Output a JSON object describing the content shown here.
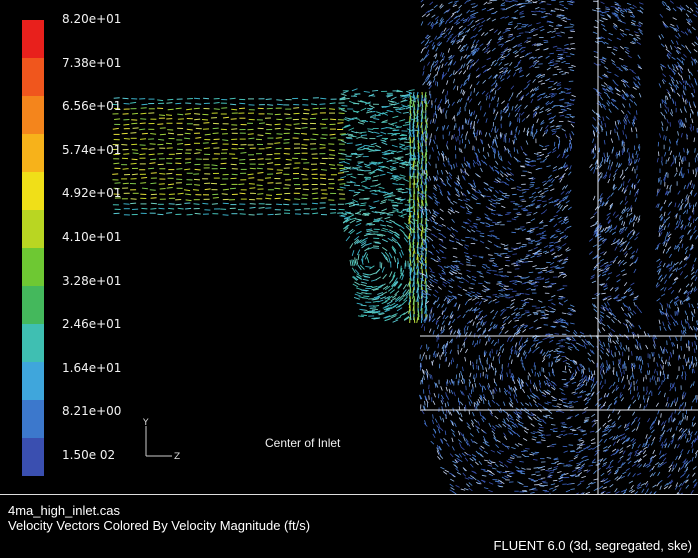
{
  "colorbar": {
    "labels": [
      "8.20e+01",
      "7.38e+01",
      "6.56e+01",
      "5.74e+01",
      "4.92e+01",
      "4.10e+01",
      "3.28e+01",
      "2.46e+01",
      "1.64e+01",
      "8.21e+00",
      "1.50e 02"
    ],
    "colors": [
      "#e8201c",
      "#f0561d",
      "#f4851c",
      "#f7b21a",
      "#f0df18",
      "#b9d622",
      "#6ec833",
      "#44b85c",
      "#3fbfb2",
      "#3fa6dc",
      "#3c78cc",
      "#3a4fb0"
    ]
  },
  "annotation": {
    "center_label": "Center of Inlet"
  },
  "axes": {
    "y": "Y",
    "z": "Z"
  },
  "footer": {
    "case_name": "4ma_high_inlet.cas",
    "plot_title": "Velocity Vectors Colored By Velocity Magnitude (ft/s)",
    "solver_info": "FLUENT 6.0 (3d, segregated, ske)"
  },
  "field_colors": {
    "inlet": [
      "#c9d82a",
      "#e6e23a",
      "#9fd23c",
      "#d6e05a",
      "#7fc84a"
    ],
    "transition": [
      "#46c2b8",
      "#58cbd4",
      "#3ab0c8",
      "#6fd0c0"
    ],
    "domain": [
      "#3b62c4",
      "#4a7fd8",
      "#3a50b0",
      "#5a95e0",
      "#8fb7ea",
      "#c9d6f2"
    ],
    "jet": [
      "#57c5d2",
      "#82d660",
      "#b7dc3a",
      "#3ea8dc"
    ]
  }
}
